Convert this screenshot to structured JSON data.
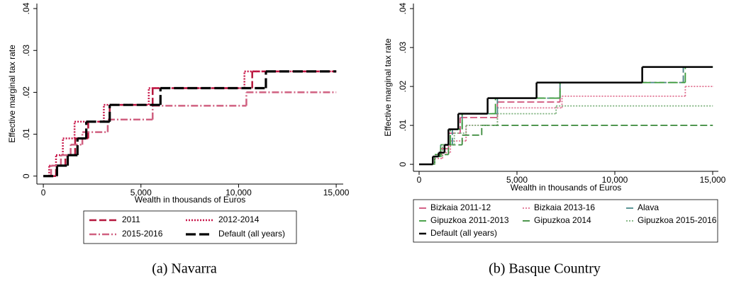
{
  "chart_data": [
    {
      "type": "line",
      "step": "post",
      "caption": "(a) Navarra",
      "x_label": "Wealth in thousands of Euros",
      "y_label": "Effective marginal tax rate",
      "xlim": [
        -330,
        15360
      ],
      "ylim": [
        -0.0019,
        0.0412
      ],
      "xticks": [
        0,
        {
          "value": 5000,
          "label": "5,000"
        },
        {
          "value": 10000,
          "label": "10,000"
        },
        {
          "value": 15000,
          "label": "15,000"
        }
      ],
      "yticks": [
        0,
        {
          "value": 0.01,
          "label": ".01"
        },
        {
          "value": 0.02,
          "label": ".02"
        },
        {
          "value": 0.03,
          "label": ".03"
        },
        {
          "value": 0.04,
          "label": ".04"
        }
      ],
      "legend_columns": 2,
      "series": [
        {
          "name": "2011",
          "color": "#b5173c",
          "style": "dashed",
          "x": [
            0,
            650,
            1130,
            1630,
            2300,
            3400,
            5600,
            10700,
            15000
          ],
          "values": [
            0,
            0.0025,
            0.005,
            0.009,
            0.013,
            0.017,
            0.021,
            0.025,
            0.025
          ]
        },
        {
          "name": "2012-2014",
          "color": "#c8174a",
          "style": "dotted",
          "x": [
            0,
            300,
            650,
            1000,
            1600,
            3100,
            5400,
            10300,
            15000
          ],
          "values": [
            0,
            0.0025,
            0.005,
            0.009,
            0.013,
            0.017,
            0.021,
            0.025,
            0.025
          ]
        },
        {
          "name": "2015-2016",
          "color": "#d06080",
          "style": "dashdot",
          "x": [
            0,
            400,
            900,
            1400,
            2000,
            3300,
            5600,
            10400,
            15000
          ],
          "values": [
            0,
            0.0025,
            0.005,
            0.0075,
            0.0105,
            0.0135,
            0.0168,
            0.02,
            0.02
          ]
        },
        {
          "name": "Default (all years)",
          "color": "#000000",
          "style": "longdash",
          "x": [
            0,
            700,
            1250,
            1750,
            2200,
            3400,
            6000,
            11400,
            15000
          ],
          "values": [
            0,
            0.0025,
            0.005,
            0.009,
            0.013,
            0.017,
            0.021,
            0.025,
            0.025
          ]
        }
      ]
    },
    {
      "type": "line",
      "step": "post",
      "caption": "(b) Basque Country",
      "x_label": "Wealth in thousands of Euros",
      "y_label": "Effective marginal tax rate",
      "xlim": [
        -290,
        15290
      ],
      "ylim": [
        -0.0018,
        0.0413
      ],
      "xticks": [
        0,
        {
          "value": 5000,
          "label": "5,000"
        },
        {
          "value": 10000,
          "label": "10,000"
        },
        {
          "value": 15000,
          "label": "15,000"
        }
      ],
      "yticks": [
        0,
        {
          "value": 0.01,
          "label": ".01"
        },
        {
          "value": 0.02,
          "label": ".02"
        },
        {
          "value": 0.03,
          "label": ".03"
        },
        {
          "value": 0.04,
          "label": ".04"
        }
      ],
      "legend_columns": 3,
      "series": [
        {
          "name": "Bizkaia 2011-12",
          "color": "#d0507a",
          "style": "dashed",
          "x": [
            0,
            800,
            1100,
            1500,
            2100,
            4000,
            7200,
            13500,
            15000
          ],
          "values": [
            0,
            0.002,
            0.004,
            0.008,
            0.012,
            0.016,
            0.021,
            0.025,
            0.025
          ]
        },
        {
          "name": "Bizkaia 2013-16",
          "color": "#e07090",
          "style": "dotted",
          "x": [
            0,
            800,
            1200,
            1600,
            2400,
            4000,
            7300,
            13600,
            15000
          ],
          "values": [
            0,
            0.0015,
            0.003,
            0.006,
            0.01,
            0.0145,
            0.0175,
            0.02,
            0.02
          ]
        },
        {
          "name": "Alava",
          "color": "#4a8a8a",
          "style": "dashed",
          "x": [
            0,
            800,
            1100,
            1700,
            2200,
            4000,
            7200,
            13500,
            15000
          ],
          "values": [
            0,
            0.002,
            0.005,
            0.009,
            0.013,
            0.017,
            0.021,
            0.025,
            0.025
          ]
        },
        {
          "name": "Gipuzkoa 2011-2013",
          "color": "#3a9a3a",
          "style": "longdash",
          "x": [
            0,
            800,
            1100,
            1600,
            2200,
            3900,
            7200,
            13600,
            15000
          ],
          "values": [
            0,
            0.002,
            0.005,
            0.009,
            0.013,
            0.017,
            0.021,
            0.025,
            0.025
          ]
        },
        {
          "name": "Gipuzkoa 2014",
          "color": "#3a8a3a",
          "style": "dashed",
          "x": [
            0,
            800,
            1500,
            2200,
            3200,
            15000
          ],
          "values": [
            0,
            0.0025,
            0.005,
            0.0075,
            0.01,
            0.01
          ]
        },
        {
          "name": "Gipuzkoa 2015-2016",
          "color": "#7ab07a",
          "style": "dotted",
          "x": [
            0,
            800,
            1200,
            1800,
            2400,
            4000,
            7000,
            15000
          ],
          "values": [
            0,
            0.002,
            0.005,
            0.008,
            0.01,
            0.013,
            0.015,
            0.015
          ]
        },
        {
          "name": "Default (all years)",
          "color": "#000000",
          "style": "solid",
          "x": [
            0,
            700,
            1000,
            1300,
            1500,
            2000,
            3500,
            6000,
            11400,
            15000
          ],
          "values": [
            0,
            0.002,
            0.003,
            0.005,
            0.009,
            0.013,
            0.017,
            0.021,
            0.025,
            0.025
          ]
        }
      ]
    }
  ]
}
